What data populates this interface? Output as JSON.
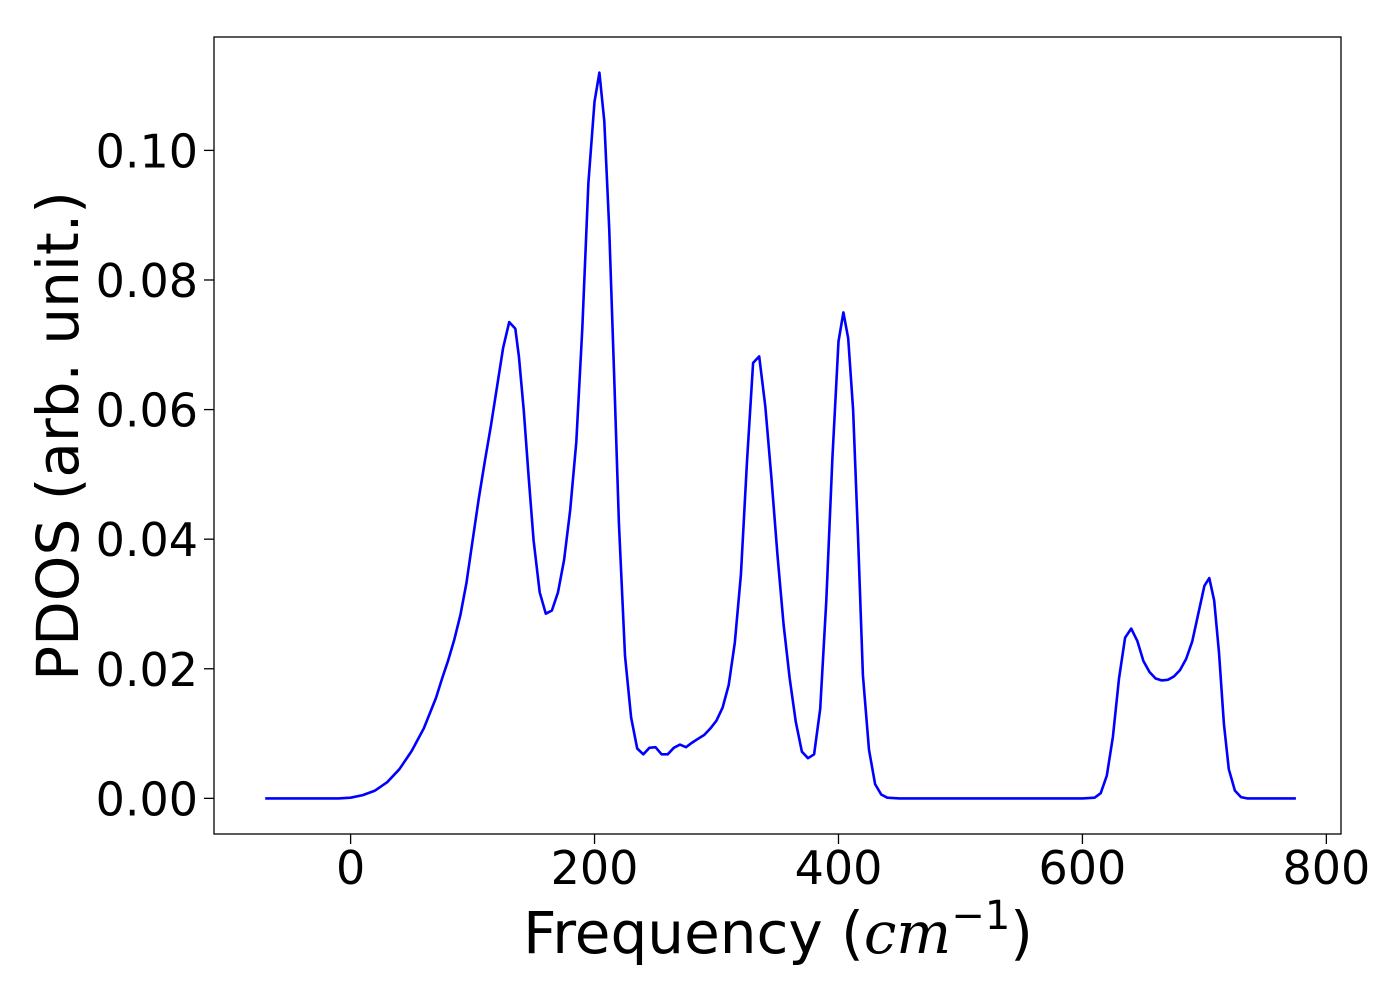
{
  "chart_data": {
    "type": "line",
    "title": "",
    "xlabel": "Frequency",
    "xlabel_unit_base": "cm",
    "xlabel_unit_exp": "−1",
    "ylabel": "PDOS (arb. unit.)",
    "xlim": [
      -112,
      812
    ],
    "ylim": [
      -0.0055,
      0.1175
    ],
    "xticks": [
      0,
      200,
      400,
      600,
      800
    ],
    "xtick_labels": [
      "0",
      "200",
      "400",
      "600",
      "800"
    ],
    "yticks": [
      0.0,
      0.02,
      0.04,
      0.06,
      0.08,
      0.1
    ],
    "ytick_labels": [
      "0.00",
      "0.02",
      "0.04",
      "0.06",
      "0.08",
      "0.10"
    ],
    "grid": false,
    "legend": "none",
    "colors": {
      "series": "#0000ff",
      "axes": "#000000",
      "background": "#ffffff"
    },
    "series": [
      {
        "color": "#0000ff",
        "x": [
          -70,
          -40,
          -10,
          0,
          10,
          20,
          30,
          40,
          50,
          60,
          70,
          75,
          80,
          85,
          90,
          95,
          100,
          105,
          110,
          115,
          120,
          125,
          130,
          135,
          138,
          142,
          146,
          150,
          155,
          160,
          165,
          170,
          175,
          180,
          185,
          190,
          195,
          200,
          204,
          208,
          212,
          216,
          220,
          225,
          230,
          235,
          240,
          245,
          250,
          255,
          260,
          265,
          270,
          275,
          280,
          285,
          290,
          295,
          300,
          305,
          310,
          315,
          320,
          325,
          330,
          335,
          340,
          345,
          350,
          355,
          360,
          365,
          370,
          375,
          380,
          385,
          390,
          395,
          400,
          404,
          408,
          412,
          416,
          420,
          425,
          430,
          435,
          440,
          450,
          500,
          550,
          600,
          610,
          615,
          620,
          625,
          630,
          635,
          640,
          645,
          650,
          655,
          660,
          665,
          670,
          675,
          680,
          685,
          690,
          695,
          700,
          704,
          708,
          712,
          716,
          720,
          725,
          730,
          735,
          740,
          775
        ],
        "y": [
          0.0,
          0.0,
          0.0,
          0.0001,
          0.0005,
          0.0012,
          0.0025,
          0.0045,
          0.0073,
          0.0108,
          0.0155,
          0.0185,
          0.0213,
          0.0245,
          0.0283,
          0.0333,
          0.0398,
          0.0462,
          0.052,
          0.0575,
          0.0635,
          0.0695,
          0.0735,
          0.0725,
          0.0682,
          0.0598,
          0.0495,
          0.0398,
          0.0318,
          0.0285,
          0.029,
          0.0318,
          0.0368,
          0.0445,
          0.055,
          0.0725,
          0.095,
          0.1075,
          0.112,
          0.1045,
          0.088,
          0.0655,
          0.0425,
          0.022,
          0.0125,
          0.0077,
          0.0068,
          0.0078,
          0.0079,
          0.0068,
          0.0068,
          0.0078,
          0.0083,
          0.0079,
          0.0086,
          0.0092,
          0.0098,
          0.0108,
          0.012,
          0.014,
          0.0175,
          0.024,
          0.0345,
          0.052,
          0.0672,
          0.0682,
          0.0605,
          0.0495,
          0.0375,
          0.0268,
          0.0185,
          0.0118,
          0.0072,
          0.0062,
          0.0068,
          0.0138,
          0.0305,
          0.0525,
          0.0705,
          0.075,
          0.071,
          0.06,
          0.0405,
          0.019,
          0.0075,
          0.0022,
          0.0006,
          0.0001,
          0.0,
          0.0,
          0.0,
          0.0,
          0.0001,
          0.0008,
          0.0035,
          0.0095,
          0.0185,
          0.0248,
          0.0262,
          0.0243,
          0.0212,
          0.0195,
          0.0185,
          0.0182,
          0.0183,
          0.0188,
          0.0198,
          0.0215,
          0.0242,
          0.0285,
          0.0328,
          0.034,
          0.0305,
          0.0225,
          0.0115,
          0.0045,
          0.0012,
          0.0002,
          0.0,
          0.0,
          0.0
        ]
      }
    ]
  }
}
